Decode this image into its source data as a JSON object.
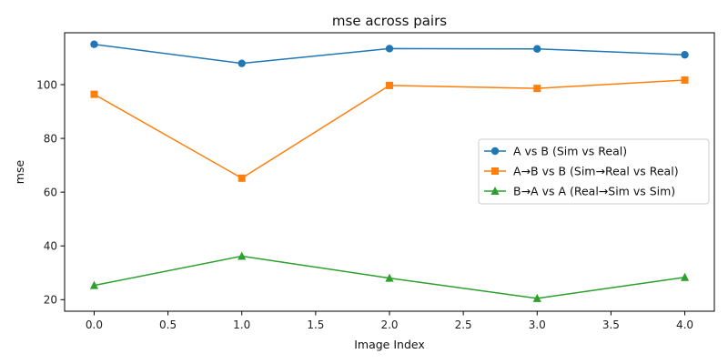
{
  "chart_data": {
    "type": "line",
    "title": "mse across pairs",
    "xlabel": "Image Index",
    "ylabel": "mse",
    "x": [
      0,
      1,
      2,
      3,
      4
    ],
    "xlim": [
      -0.2,
      4.2
    ],
    "ylim": [
      15.7,
      119.3
    ],
    "xticks": [
      0,
      0.5,
      1,
      1.5,
      2,
      2.5,
      3,
      3.5,
      4
    ],
    "xtick_labels": [
      "0.0",
      "0.5",
      "1.0",
      "1.5",
      "2.0",
      "2.5",
      "3.0",
      "3.5",
      "4.0"
    ],
    "yticks": [
      20,
      40,
      60,
      80,
      100
    ],
    "ytick_labels": [
      "20",
      "40",
      "60",
      "80",
      "100"
    ],
    "grid": false,
    "legend_position": "center-right",
    "series": [
      {
        "name": "A vs B (Sim vs Real)",
        "marker": "circle",
        "color": "#1f77b4",
        "values": [
          115.0,
          107.9,
          113.4,
          113.3,
          111.1
        ]
      },
      {
        "name": "A→B vs B (Sim→Real vs Real)",
        "marker": "square",
        "color": "#ff7f0e",
        "values": [
          96.4,
          65.2,
          99.7,
          98.6,
          101.7
        ]
      },
      {
        "name": "B→A vs A (Real→Sim vs Sim)",
        "marker": "triangle",
        "color": "#2ca02c",
        "values": [
          25.3,
          36.2,
          28.0,
          20.5,
          28.3
        ]
      }
    ]
  }
}
